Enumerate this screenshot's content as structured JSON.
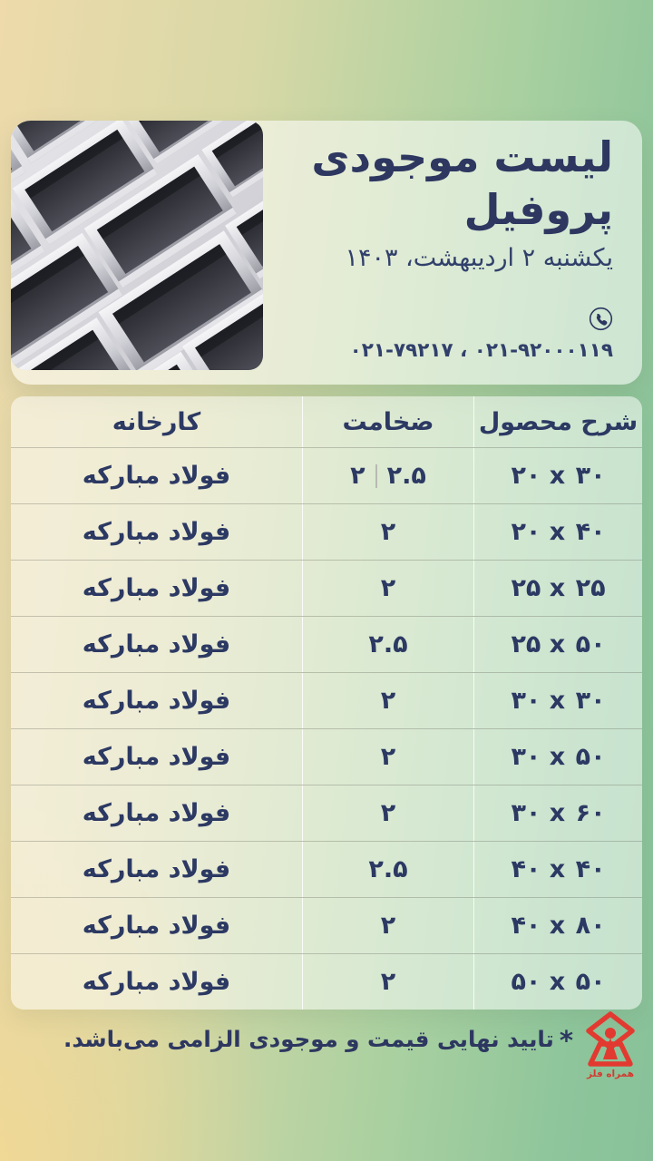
{
  "header": {
    "title_line1": "لیست موجودی",
    "title_line2": "پروفیل",
    "date": "یکشنبه ۲ اردیبهشت، ۱۴۰۳",
    "phones": "۰۲۱-۹۲۰۰۰۱۱۹  ،  ۰۲۱-۷۹۲۱۷",
    "phone_icon": "phone-icon",
    "photo": "stacked-steel-box-profiles"
  },
  "table": {
    "columns": [
      "شرح محصول",
      "ضخامت",
      "کارخانه"
    ],
    "rows": [
      {
        "product": "۲۰ x ۳۰",
        "thickness": [
          "۲.۵",
          "۲"
        ],
        "factory": "فولاد مبارکه"
      },
      {
        "product": "۲۰ x ۴۰",
        "thickness": [
          "۲"
        ],
        "factory": "فولاد مبارکه"
      },
      {
        "product": "۲۵ x ۲۵",
        "thickness": [
          "۲"
        ],
        "factory": "فولاد مبارکه"
      },
      {
        "product": "۲۵ x ۵۰",
        "thickness": [
          "۲.۵"
        ],
        "factory": "فولاد مبارکه"
      },
      {
        "product": "۳۰ x ۳۰",
        "thickness": [
          "۲"
        ],
        "factory": "فولاد مبارکه"
      },
      {
        "product": "۳۰ x ۵۰",
        "thickness": [
          "۲"
        ],
        "factory": "فولاد مبارکه"
      },
      {
        "product": "۳۰ x ۶۰",
        "thickness": [
          "۲"
        ],
        "factory": "فولاد مبارکه"
      },
      {
        "product": "۴۰ x ۴۰",
        "thickness": [
          "۲.۵"
        ],
        "factory": "فولاد مبارکه"
      },
      {
        "product": "۴۰ x ۸۰",
        "thickness": [
          "۲"
        ],
        "factory": "فولاد مبارکه"
      },
      {
        "product": "۵۰ x ۵۰",
        "thickness": [
          "۲"
        ],
        "factory": "فولاد مبارکه"
      }
    ]
  },
  "footer": {
    "note_star": "*",
    "note": "تایید نهایی قیمت و موجودی الزامی می‌باشد.",
    "brand": "همراه فلز"
  },
  "colors": {
    "navy": "#2d3760",
    "brand_red": "#e23a30",
    "bg_cream": "#eedaab",
    "bg_green": "#8ec59b"
  }
}
